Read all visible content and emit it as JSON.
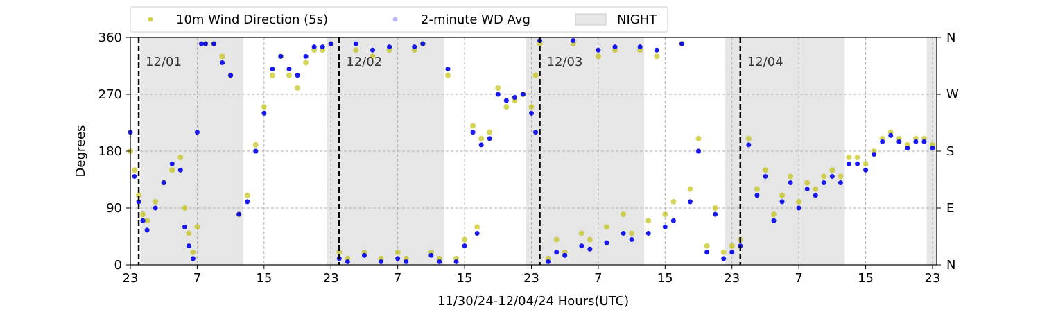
{
  "chart_data": {
    "type": "scatter",
    "xlabel": "11/30/24-12/04/24  Hours(UTC)",
    "ylabel": "Degrees",
    "ylim": [
      0,
      360
    ],
    "xlim_hours": [
      0,
      96.5
    ],
    "grid": true,
    "legend_position": "top",
    "x_ticks": [
      {
        "label": "23",
        "hour": 0
      },
      {
        "label": "7",
        "hour": 8
      },
      {
        "label": "15",
        "hour": 16
      },
      {
        "label": "23",
        "hour": 24
      },
      {
        "label": "7",
        "hour": 32
      },
      {
        "label": "15",
        "hour": 40
      },
      {
        "label": "23",
        "hour": 48
      },
      {
        "label": "7",
        "hour": 56
      },
      {
        "label": "15",
        "hour": 64
      },
      {
        "label": "23",
        "hour": 72
      },
      {
        "label": "7",
        "hour": 80
      },
      {
        "label": "15",
        "hour": 88
      },
      {
        "label": "23",
        "hour": 96
      }
    ],
    "y_ticks": [
      0,
      90,
      180,
      270,
      360
    ],
    "y2_ticks": [
      {
        "value": 0,
        "label": "N"
      },
      {
        "value": 90,
        "label": "E"
      },
      {
        "value": 180,
        "label": "S"
      },
      {
        "value": 270,
        "label": "W"
      },
      {
        "value": 360,
        "label": "N"
      }
    ],
    "day_markers": [
      {
        "label": "12/01",
        "hour": 1
      },
      {
        "label": "12/02",
        "hour": 25
      },
      {
        "label": "12/03",
        "hour": 49
      },
      {
        "label": "12/04",
        "hour": 73
      }
    ],
    "night_periods": [
      [
        1.2,
        13.5
      ],
      [
        23.5,
        37.5
      ],
      [
        47.3,
        61.5
      ],
      [
        71.2,
        85.5
      ],
      [
        95.3,
        96.5
      ]
    ],
    "series": [
      {
        "name": "10m Wind Direction (5s)",
        "color": "#bfbf00",
        "marker": "circle",
        "points": [
          [
            0,
            180
          ],
          [
            0.5,
            150
          ],
          [
            1,
            110
          ],
          [
            1.5,
            80
          ],
          [
            2,
            70
          ],
          [
            3,
            100
          ],
          [
            4,
            130
          ],
          [
            5,
            150
          ],
          [
            6,
            170
          ],
          [
            6.5,
            90
          ],
          [
            7,
            50
          ],
          [
            7.5,
            20
          ],
          [
            8,
            60
          ],
          [
            9,
            350
          ],
          [
            10,
            350
          ],
          [
            11,
            330
          ],
          [
            12,
            300
          ],
          [
            13,
            80
          ],
          [
            14,
            110
          ],
          [
            15,
            190
          ],
          [
            16,
            250
          ],
          [
            17,
            300
          ],
          [
            18,
            330
          ],
          [
            19,
            300
          ],
          [
            20,
            280
          ],
          [
            21,
            320
          ],
          [
            22,
            340
          ],
          [
            23,
            340
          ],
          [
            24,
            350
          ],
          [
            25,
            20
          ],
          [
            26,
            10
          ],
          [
            27,
            340
          ],
          [
            28,
            20
          ],
          [
            29,
            330
          ],
          [
            30,
            10
          ],
          [
            31,
            340
          ],
          [
            32,
            20
          ],
          [
            33,
            10
          ],
          [
            34,
            340
          ],
          [
            35,
            350
          ],
          [
            36,
            20
          ],
          [
            37,
            10
          ],
          [
            38,
            300
          ],
          [
            39,
            10
          ],
          [
            40,
            40
          ],
          [
            41,
            220
          ],
          [
            41.5,
            60
          ],
          [
            42,
            200
          ],
          [
            43,
            210
          ],
          [
            44,
            280
          ],
          [
            45,
            250
          ],
          [
            46,
            260
          ],
          [
            47,
            270
          ],
          [
            48,
            250
          ],
          [
            48.5,
            300
          ],
          [
            49,
            350
          ],
          [
            50,
            10
          ],
          [
            51,
            40
          ],
          [
            52,
            20
          ],
          [
            53,
            350
          ],
          [
            54,
            50
          ],
          [
            55,
            40
          ],
          [
            56,
            330
          ],
          [
            57,
            60
          ],
          [
            58,
            340
          ],
          [
            59,
            80
          ],
          [
            60,
            50
          ],
          [
            61,
            340
          ],
          [
            62,
            70
          ],
          [
            63,
            330
          ],
          [
            64,
            80
          ],
          [
            65,
            100
          ],
          [
            66,
            350
          ],
          [
            67,
            120
          ],
          [
            68,
            200
          ],
          [
            69,
            30
          ],
          [
            70,
            90
          ],
          [
            71,
            20
          ],
          [
            72,
            30
          ],
          [
            73,
            40
          ],
          [
            74,
            200
          ],
          [
            75,
            120
          ],
          [
            76,
            150
          ],
          [
            77,
            80
          ],
          [
            78,
            110
          ],
          [
            79,
            140
          ],
          [
            80,
            100
          ],
          [
            81,
            130
          ],
          [
            82,
            120
          ],
          [
            83,
            140
          ],
          [
            84,
            150
          ],
          [
            85,
            140
          ],
          [
            86,
            170
          ],
          [
            87,
            170
          ],
          [
            88,
            160
          ],
          [
            89,
            180
          ],
          [
            90,
            200
          ],
          [
            91,
            210
          ],
          [
            92,
            200
          ],
          [
            93,
            190
          ],
          [
            94,
            200
          ],
          [
            95,
            200
          ],
          [
            96,
            190
          ]
        ]
      },
      {
        "name": "2-minute WD Avg",
        "color": "#0000ee",
        "marker": "circle",
        "points": [
          [
            0,
            210
          ],
          [
            0.5,
            140
          ],
          [
            1,
            100
          ],
          [
            1.5,
            70
          ],
          [
            2,
            55
          ],
          [
            3,
            90
          ],
          [
            4,
            130
          ],
          [
            5,
            160
          ],
          [
            6,
            150
          ],
          [
            6.5,
            60
          ],
          [
            7,
            30
          ],
          [
            7.5,
            10
          ],
          [
            8,
            210
          ],
          [
            8.5,
            350
          ],
          [
            9,
            350
          ],
          [
            10,
            350
          ],
          [
            11,
            320
          ],
          [
            12,
            300
          ],
          [
            13,
            80
          ],
          [
            14,
            100
          ],
          [
            15,
            180
          ],
          [
            16,
            240
          ],
          [
            17,
            310
          ],
          [
            18,
            330
          ],
          [
            19,
            310
          ],
          [
            20,
            300
          ],
          [
            21,
            330
          ],
          [
            22,
            345
          ],
          [
            23,
            345
          ],
          [
            24,
            350
          ],
          [
            25,
            10
          ],
          [
            26,
            5
          ],
          [
            27,
            350
          ],
          [
            28,
            15
          ],
          [
            29,
            340
          ],
          [
            30,
            5
          ],
          [
            31,
            345
          ],
          [
            32,
            10
          ],
          [
            33,
            5
          ],
          [
            34,
            345
          ],
          [
            35,
            350
          ],
          [
            36,
            15
          ],
          [
            37,
            5
          ],
          [
            38,
            310
          ],
          [
            39,
            5
          ],
          [
            40,
            30
          ],
          [
            41,
            210
          ],
          [
            41.5,
            50
          ],
          [
            42,
            190
          ],
          [
            43,
            200
          ],
          [
            44,
            270
          ],
          [
            45,
            260
          ],
          [
            46,
            265
          ],
          [
            47,
            270
          ],
          [
            48,
            240
          ],
          [
            48.5,
            210
          ],
          [
            49,
            355
          ],
          [
            50,
            5
          ],
          [
            51,
            20
          ],
          [
            52,
            15
          ],
          [
            53,
            355
          ],
          [
            54,
            30
          ],
          [
            55,
            25
          ],
          [
            56,
            340
          ],
          [
            57,
            35
          ],
          [
            58,
            345
          ],
          [
            59,
            50
          ],
          [
            60,
            40
          ],
          [
            61,
            345
          ],
          [
            62,
            50
          ],
          [
            63,
            340
          ],
          [
            64,
            60
          ],
          [
            65,
            70
          ],
          [
            66,
            350
          ],
          [
            67,
            100
          ],
          [
            68,
            180
          ],
          [
            69,
            20
          ],
          [
            70,
            80
          ],
          [
            71,
            10
          ],
          [
            72,
            20
          ],
          [
            73,
            30
          ],
          [
            74,
            190
          ],
          [
            75,
            110
          ],
          [
            76,
            140
          ],
          [
            77,
            70
          ],
          [
            78,
            100
          ],
          [
            79,
            130
          ],
          [
            80,
            90
          ],
          [
            81,
            120
          ],
          [
            82,
            110
          ],
          [
            83,
            130
          ],
          [
            84,
            140
          ],
          [
            85,
            130
          ],
          [
            86,
            160
          ],
          [
            87,
            160
          ],
          [
            88,
            150
          ],
          [
            89,
            175
          ],
          [
            90,
            195
          ],
          [
            91,
            205
          ],
          [
            92,
            195
          ],
          [
            93,
            185
          ],
          [
            94,
            195
          ],
          [
            95,
            195
          ],
          [
            96,
            185
          ]
        ]
      }
    ],
    "legend": [
      {
        "label": "10m Wind Direction (5s)",
        "color": "#bfbf00",
        "kind": "dot"
      },
      {
        "label": "2-minute WD Avg",
        "color": "#7070ee",
        "kind": "dot"
      },
      {
        "label": "NIGHT",
        "color": "#e6e6e6",
        "kind": "patch"
      }
    ]
  }
}
